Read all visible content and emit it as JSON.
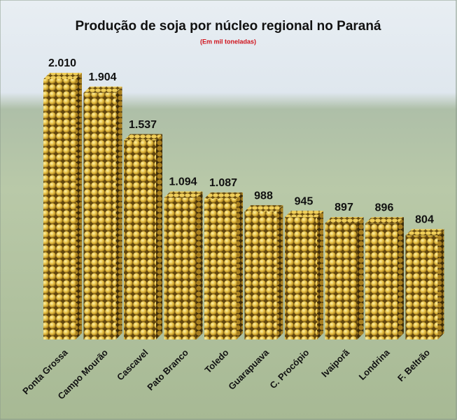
{
  "chart_data": {
    "type": "bar",
    "title": "Produção de soja por núcleo regional no Paraná",
    "subtitle": "(Em mil toneladas)",
    "categories": [
      "Ponta Grossa",
      "Campo Mourão",
      "Cascavel",
      "Pato Branco",
      "Toledo",
      "Guarapuava",
      "C. Procópio",
      "Ivaiporã",
      "Londrina",
      "F. Beltrão"
    ],
    "values": [
      2010,
      1904,
      1537,
      1094,
      1087,
      988,
      945,
      897,
      896,
      804
    ],
    "value_labels": [
      "2.010",
      "1.904",
      "1.537",
      "1.094",
      "1.087",
      "988",
      "945",
      "897",
      "896",
      "804"
    ],
    "color": "#d9b13a"
  }
}
